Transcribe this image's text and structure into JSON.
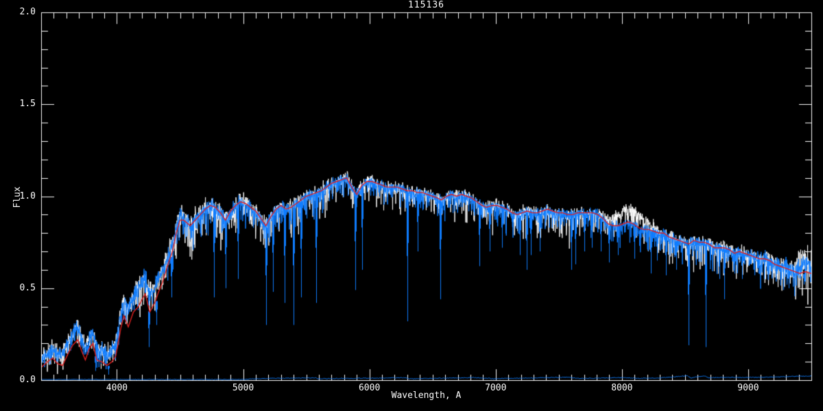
{
  "chart_data": {
    "type": "line",
    "title": "115136",
    "xlabel": "Wavelength, A",
    "ylabel": "Flux",
    "xlim": [
      3400,
      9500
    ],
    "ylim": [
      0.0,
      2.0
    ],
    "x_major_ticks": [
      4000,
      5000,
      6000,
      7000,
      8000,
      9000
    ],
    "x_minor_tick_step": 100,
    "y_major_ticks": [
      0.0,
      0.5,
      1.0,
      1.5,
      2.0
    ],
    "y_minor_tick_step": 0.1,
    "grid": false,
    "legend": "none",
    "background": "#000000",
    "axis_color": "#ffffff",
    "series": [
      {
        "name": "observed_spectrum",
        "color": "#ffffff",
        "style": "noisy-line",
        "role": "observed flux spectrum, high-frequency noise envelope"
      },
      {
        "name": "overlay_spectrum",
        "color": "#0f7dff",
        "style": "noisy-line",
        "role": "second spectrum overplotted in blue with deep absorption and telluric spikes"
      },
      {
        "name": "template_fit",
        "color": "#e02020",
        "style": "smooth-line",
        "points": [
          [
            3400,
            0.07
          ],
          [
            3450,
            0.1
          ],
          [
            3490,
            0.12
          ],
          [
            3530,
            0.09
          ],
          [
            3570,
            0.08
          ],
          [
            3610,
            0.14
          ],
          [
            3650,
            0.19
          ],
          [
            3690,
            0.22
          ],
          [
            3720,
            0.16
          ],
          [
            3750,
            0.11
          ],
          [
            3780,
            0.17
          ],
          [
            3810,
            0.2
          ],
          [
            3840,
            0.11
          ],
          [
            3880,
            0.1
          ],
          [
            3920,
            0.08
          ],
          [
            3960,
            0.1
          ],
          [
            3990,
            0.13
          ],
          [
            4010,
            0.2
          ],
          [
            4030,
            0.28
          ],
          [
            4055,
            0.35
          ],
          [
            4090,
            0.29
          ],
          [
            4130,
            0.37
          ],
          [
            4170,
            0.4
          ],
          [
            4200,
            0.44
          ],
          [
            4225,
            0.47
          ],
          [
            4260,
            0.37
          ],
          [
            4300,
            0.42
          ],
          [
            4330,
            0.48
          ],
          [
            4360,
            0.53
          ],
          [
            4400,
            0.62
          ],
          [
            4440,
            0.7
          ],
          [
            4470,
            0.8
          ],
          [
            4500,
            0.87
          ],
          [
            4530,
            0.87
          ],
          [
            4580,
            0.84
          ],
          [
            4620,
            0.87
          ],
          [
            4660,
            0.9
          ],
          [
            4700,
            0.93
          ],
          [
            4740,
            0.95
          ],
          [
            4780,
            0.94
          ],
          [
            4820,
            0.91
          ],
          [
            4860,
            0.87
          ],
          [
            4900,
            0.92
          ],
          [
            4940,
            0.95
          ],
          [
            4980,
            0.97
          ],
          [
            5020,
            0.96
          ],
          [
            5060,
            0.94
          ],
          [
            5100,
            0.92
          ],
          [
            5140,
            0.88
          ],
          [
            5180,
            0.84
          ],
          [
            5220,
            0.89
          ],
          [
            5260,
            0.93
          ],
          [
            5300,
            0.95
          ],
          [
            5340,
            0.93
          ],
          [
            5380,
            0.94
          ],
          [
            5420,
            0.96
          ],
          [
            5460,
            0.98
          ],
          [
            5500,
            1.0
          ],
          [
            5540,
            1.01
          ],
          [
            5580,
            1.02
          ],
          [
            5620,
            1.03
          ],
          [
            5660,
            1.05
          ],
          [
            5700,
            1.07
          ],
          [
            5740,
            1.08
          ],
          [
            5780,
            1.09
          ],
          [
            5820,
            1.1
          ],
          [
            5860,
            1.05
          ],
          [
            5900,
            1.01
          ],
          [
            5940,
            1.06
          ],
          [
            5980,
            1.08
          ],
          [
            6020,
            1.08
          ],
          [
            6060,
            1.07
          ],
          [
            6100,
            1.06
          ],
          [
            6140,
            1.05
          ],
          [
            6180,
            1.05
          ],
          [
            6220,
            1.05
          ],
          [
            6260,
            1.04
          ],
          [
            6300,
            1.03
          ],
          [
            6340,
            1.03
          ],
          [
            6380,
            1.02
          ],
          [
            6420,
            1.02
          ],
          [
            6460,
            1.01
          ],
          [
            6500,
            1.0
          ],
          [
            6540,
            0.99
          ],
          [
            6570,
            0.98
          ],
          [
            6610,
            1.0
          ],
          [
            6650,
            1.01
          ],
          [
            6690,
            1.0
          ],
          [
            6730,
            1.01
          ],
          [
            6770,
            1.0
          ],
          [
            6810,
            0.99
          ],
          [
            6850,
            0.97
          ],
          [
            6890,
            0.95
          ],
          [
            6930,
            0.94
          ],
          [
            6970,
            0.95
          ],
          [
            7010,
            0.95
          ],
          [
            7050,
            0.94
          ],
          [
            7090,
            0.93
          ],
          [
            7130,
            0.91
          ],
          [
            7170,
            0.9
          ],
          [
            7210,
            0.91
          ],
          [
            7250,
            0.92
          ],
          [
            7290,
            0.91
          ],
          [
            7330,
            0.91
          ],
          [
            7370,
            0.92
          ],
          [
            7410,
            0.93
          ],
          [
            7450,
            0.92
          ],
          [
            7490,
            0.91
          ],
          [
            7530,
            0.91
          ],
          [
            7570,
            0.9
          ],
          [
            7610,
            0.9
          ],
          [
            7650,
            0.91
          ],
          [
            7690,
            0.91
          ],
          [
            7730,
            0.91
          ],
          [
            7770,
            0.91
          ],
          [
            7810,
            0.9
          ],
          [
            7850,
            0.88
          ],
          [
            7890,
            0.85
          ],
          [
            7930,
            0.84
          ],
          [
            7970,
            0.84
          ],
          [
            8010,
            0.85
          ],
          [
            8050,
            0.86
          ],
          [
            8090,
            0.85
          ],
          [
            8130,
            0.83
          ],
          [
            8170,
            0.82
          ],
          [
            8210,
            0.82
          ],
          [
            8250,
            0.81
          ],
          [
            8290,
            0.8
          ],
          [
            8330,
            0.8
          ],
          [
            8370,
            0.78
          ],
          [
            8410,
            0.77
          ],
          [
            8450,
            0.76
          ],
          [
            8490,
            0.75
          ],
          [
            8530,
            0.74
          ],
          [
            8570,
            0.76
          ],
          [
            8610,
            0.75
          ],
          [
            8650,
            0.75
          ],
          [
            8690,
            0.74
          ],
          [
            8730,
            0.72
          ],
          [
            8770,
            0.72
          ],
          [
            8810,
            0.72
          ],
          [
            8850,
            0.71
          ],
          [
            8890,
            0.69
          ],
          [
            8930,
            0.7
          ],
          [
            8970,
            0.69
          ],
          [
            9010,
            0.68
          ],
          [
            9050,
            0.67
          ],
          [
            9090,
            0.66
          ],
          [
            9130,
            0.66
          ],
          [
            9170,
            0.65
          ],
          [
            9210,
            0.63
          ],
          [
            9250,
            0.62
          ],
          [
            9290,
            0.61
          ],
          [
            9330,
            0.6
          ],
          [
            9370,
            0.59
          ],
          [
            9410,
            0.58
          ],
          [
            9450,
            0.59
          ],
          [
            9500,
            0.58
          ]
        ]
      },
      {
        "name": "error_spectrum",
        "color": "#0f7dff",
        "style": "baseline",
        "points": [
          [
            3400,
            0.004
          ],
          [
            5000,
            0.004
          ],
          [
            5080,
            0.008
          ],
          [
            5570,
            0.013
          ],
          [
            5590,
            0.008
          ],
          [
            6290,
            0.013
          ],
          [
            6310,
            0.008
          ],
          [
            6840,
            0.014
          ],
          [
            6990,
            0.008
          ],
          [
            7580,
            0.016
          ],
          [
            7660,
            0.009
          ],
          [
            7990,
            0.014
          ],
          [
            8140,
            0.01
          ],
          [
            8300,
            0.012
          ],
          [
            8520,
            0.024
          ],
          [
            8545,
            0.012
          ],
          [
            8650,
            0.024
          ],
          [
            8685,
            0.013
          ],
          [
            8760,
            0.015
          ],
          [
            9000,
            0.015
          ],
          [
            9200,
            0.017
          ],
          [
            9350,
            0.02
          ],
          [
            9500,
            0.022
          ]
        ]
      }
    ],
    "absorption_lines": [
      [
        3830,
        0.05
      ],
      [
        3935,
        0.03
      ],
      [
        4165,
        0.38
      ],
      [
        4255,
        0.18
      ],
      [
        4310,
        0.3
      ],
      [
        4430,
        0.45
      ],
      [
        4770,
        0.45
      ],
      [
        4860,
        0.5
      ],
      [
        4960,
        0.55
      ],
      [
        5180,
        0.3
      ],
      [
        5237,
        0.48
      ],
      [
        5330,
        0.42
      ],
      [
        5397,
        0.3
      ],
      [
        5460,
        0.45
      ],
      [
        5577,
        0.42
      ],
      [
        5890,
        0.49
      ],
      [
        5940,
        0.6
      ],
      [
        6300,
        0.32
      ],
      [
        6380,
        0.7
      ],
      [
        6563,
        0.44
      ],
      [
        6870,
        0.62
      ],
      [
        6950,
        0.7
      ],
      [
        7050,
        0.72
      ],
      [
        7190,
        0.68
      ],
      [
        7245,
        0.6
      ],
      [
        7280,
        0.68
      ],
      [
        7350,
        0.7
      ],
      [
        7600,
        0.6
      ],
      [
        7630,
        0.63
      ],
      [
        7700,
        0.7
      ],
      [
        7760,
        0.72
      ],
      [
        7830,
        0.7
      ],
      [
        7900,
        0.64
      ],
      [
        7970,
        0.68
      ],
      [
        8100,
        0.66
      ],
      [
        8230,
        0.58
      ],
      [
        8280,
        0.65
      ],
      [
        8350,
        0.57
      ],
      [
        8430,
        0.6
      ],
      [
        8528,
        0.19
      ],
      [
        8663,
        0.18
      ],
      [
        8770,
        0.55
      ],
      [
        8810,
        0.44
      ],
      [
        8890,
        0.58
      ],
      [
        8950,
        0.55
      ],
      [
        9080,
        0.58
      ],
      [
        9180,
        0.6
      ],
      [
        9320,
        0.5
      ],
      [
        9440,
        0.52
      ]
    ],
    "noise": {
      "seed": 115136,
      "sample_step_angstrom": 1.9,
      "sigma_points": [
        [
          3400,
          0.055
        ],
        [
          3800,
          0.06
        ],
        [
          4200,
          0.065
        ],
        [
          4600,
          0.07
        ],
        [
          5000,
          0.06
        ],
        [
          5400,
          0.055
        ],
        [
          5800,
          0.05
        ],
        [
          6200,
          0.045
        ],
        [
          6600,
          0.042
        ],
        [
          7000,
          0.042
        ],
        [
          7400,
          0.042
        ],
        [
          7800,
          0.045
        ],
        [
          8200,
          0.045
        ],
        [
          8600,
          0.05
        ],
        [
          9000,
          0.055
        ],
        [
          9250,
          0.07
        ],
        [
          9500,
          0.1
        ]
      ],
      "dip_points": [
        [
          3400,
          0.1
        ],
        [
          4000,
          0.14
        ],
        [
          4400,
          0.22
        ],
        [
          4800,
          0.22
        ],
        [
          5200,
          0.2
        ],
        [
          5600,
          0.16
        ],
        [
          6000,
          0.13
        ],
        [
          6400,
          0.14
        ],
        [
          6800,
          0.16
        ],
        [
          7200,
          0.17
        ],
        [
          7600,
          0.18
        ],
        [
          8000,
          0.16
        ],
        [
          8400,
          0.17
        ],
        [
          8800,
          0.18
        ],
        [
          9200,
          0.18
        ],
        [
          9500,
          0.22
        ]
      ],
      "shared_offset_bumps": [
        [
          3650,
          230,
          0.07
        ],
        [
          4200,
          180,
          0.1
        ]
      ],
      "white_offset_bumps": [
        [
          8060,
          110,
          0.085
        ],
        [
          9460,
          80,
          0.05
        ]
      ],
      "blue_offset_bumps": [
        [
          9460,
          80,
          0.04
        ]
      ]
    }
  }
}
